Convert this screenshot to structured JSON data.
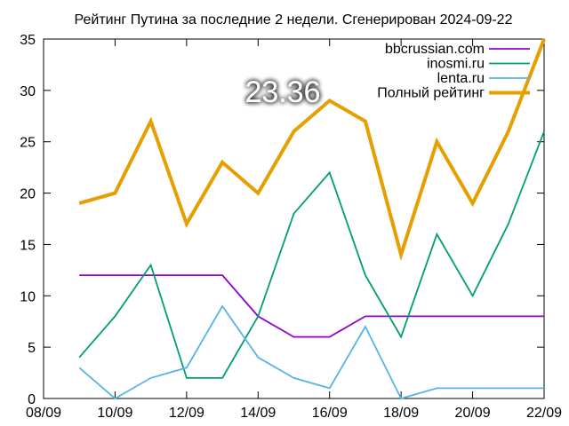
{
  "chart_data": {
    "type": "line",
    "title": "Рейтинг Путина за последние 2 недели. Сгенерирован 2024-09-22",
    "xlabel": "",
    "ylabel": "",
    "ylim": [
      0,
      35
    ],
    "yticks": [
      0,
      5,
      10,
      15,
      20,
      25,
      30,
      35
    ],
    "xlim": [
      "08/09",
      "22/09"
    ],
    "xticks": [
      "08/09",
      "10/09",
      "12/09",
      "14/09",
      "16/09",
      "18/09",
      "20/09",
      "22/09"
    ],
    "grid": false,
    "legend_position": "top-right",
    "x": [
      "09/09",
      "10/09",
      "11/09",
      "12/09",
      "13/09",
      "14/09",
      "15/09",
      "16/09",
      "17/09",
      "18/09",
      "19/09",
      "20/09",
      "21/09",
      "22/09"
    ],
    "series": [
      {
        "name": "bbcrussian.com",
        "color": "#9400d3",
        "values": [
          12,
          12,
          12,
          12,
          12,
          8,
          6,
          6,
          8,
          8,
          8,
          8,
          8,
          8
        ]
      },
      {
        "name": "inosmi.ru",
        "color": "#009e73",
        "values": [
          4,
          8,
          13,
          2,
          2,
          8,
          18,
          22,
          12,
          6,
          16,
          10,
          17,
          26
        ]
      },
      {
        "name": "lenta.ru",
        "color": "#56b4e9",
        "values": [
          3,
          0,
          2,
          3,
          9,
          4,
          2,
          1,
          7,
          0,
          1,
          1,
          1,
          1
        ]
      },
      {
        "name": "Полный рейтинг",
        "color": "#e69f00",
        "values": [
          19,
          20,
          27,
          17,
          23,
          20,
          26,
          29,
          27,
          14,
          25,
          19,
          26,
          35
        ]
      }
    ],
    "annotations": [
      {
        "text": "23.36"
      }
    ]
  }
}
